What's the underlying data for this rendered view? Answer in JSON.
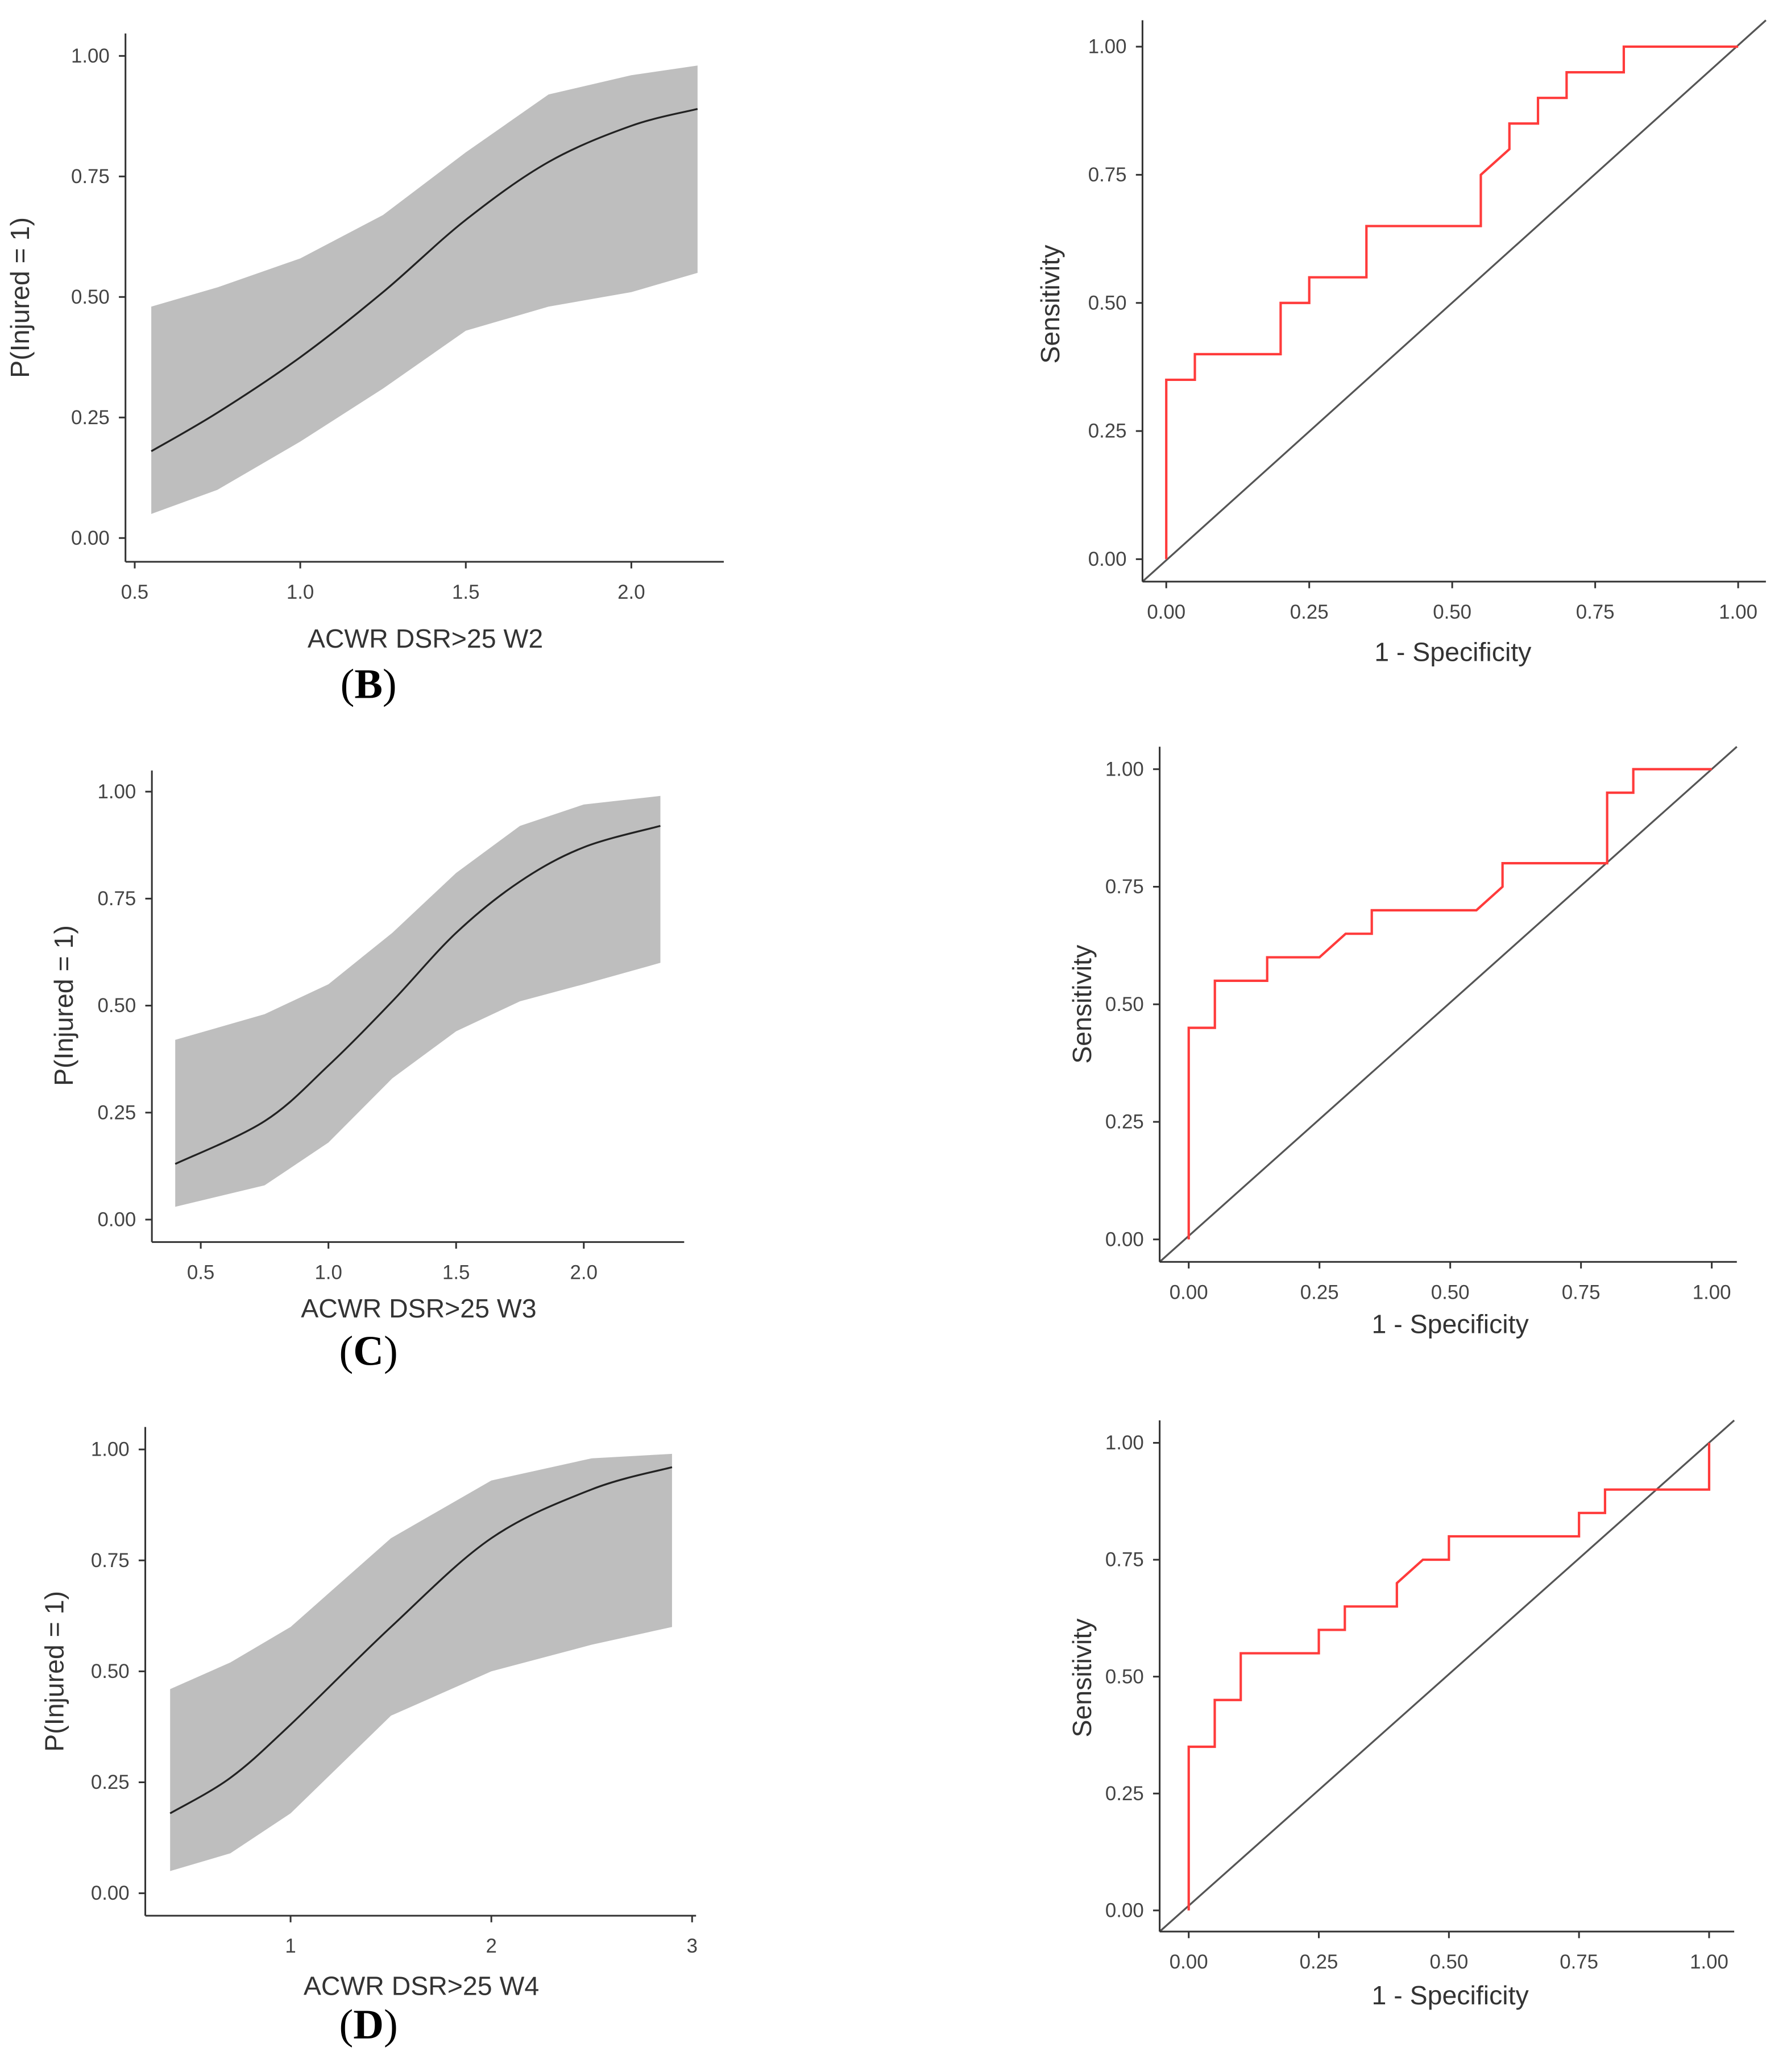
{
  "chart_data": [
    {
      "type": "line",
      "panel_label": "B",
      "xlabel": "ACWR DSR>25 W2",
      "ylabel": "P(Injured = 1)",
      "xlim": [
        0.45,
        2.3
      ],
      "ylim": [
        -0.05,
        1.05
      ],
      "xticks": [
        0.5,
        1.0,
        1.5,
        2.0
      ],
      "xtick_labels": [
        "0.5",
        "1.0",
        "1.5",
        "2.0"
      ],
      "yticks": [
        0,
        0.25,
        0.5,
        0.75,
        1
      ],
      "ytick_labels": [
        "0.00",
        "0.25",
        "0.50",
        "0.75",
        "1.00"
      ],
      "band_color": "#bebebe",
      "line_color": "#222222",
      "x": [
        0.55,
        0.75,
        1.0,
        1.25,
        1.5,
        1.75,
        2.0,
        2.2
      ],
      "mean": [
        0.18,
        0.26,
        0.375,
        0.51,
        0.66,
        0.78,
        0.855,
        0.89
      ],
      "lower": [
        0.05,
        0.1,
        0.2,
        0.31,
        0.43,
        0.48,
        0.51,
        0.55
      ],
      "upper": [
        0.48,
        0.52,
        0.58,
        0.67,
        0.8,
        0.92,
        0.96,
        0.98
      ]
    },
    {
      "type": "line",
      "xlabel": "1 - Specificity",
      "ylabel": "Sensitivity",
      "xlim": [
        -0.05,
        1.05
      ],
      "ylim": [
        -0.05,
        1.05
      ],
      "ticks": [
        0,
        0.25,
        0.5,
        0.75,
        1
      ],
      "tick_labels": [
        "0.00",
        "0.25",
        "0.50",
        "0.75",
        "1.00"
      ],
      "roc_color": "#ff3b3b",
      "diag_color": "#555555",
      "fpr": [
        0,
        0,
        0.05,
        0.05,
        0.2,
        0.2,
        0.25,
        0.25,
        0.35,
        0.35,
        0.55,
        0.55,
        0.6,
        0.6,
        0.65,
        0.65,
        0.7,
        0.7,
        0.8,
        0.8,
        1.0
      ],
      "tpr": [
        0,
        0.35,
        0.35,
        0.4,
        0.4,
        0.5,
        0.5,
        0.55,
        0.55,
        0.65,
        0.65,
        0.75,
        0.8,
        0.85,
        0.85,
        0.9,
        0.9,
        0.95,
        0.95,
        1.0,
        1.0
      ]
    },
    {
      "type": "line",
      "panel_label": "C",
      "xlabel": "ACWR DSR>25 W3",
      "ylabel": "P(Injured = 1)",
      "xlim": [
        0.3,
        2.4
      ],
      "ylim": [
        -0.05,
        1.05
      ],
      "xticks": [
        0.5,
        1.0,
        1.5,
        2.0
      ],
      "xtick_labels": [
        "0.5",
        "1.0",
        "1.5",
        "2.0"
      ],
      "yticks": [
        0,
        0.25,
        0.5,
        0.75,
        1
      ],
      "ytick_labels": [
        "0.00",
        "0.25",
        "0.50",
        "0.75",
        "1.00"
      ],
      "band_color": "#bebebe",
      "line_color": "#222222",
      "x": [
        0.4,
        0.75,
        1.0,
        1.25,
        1.5,
        1.75,
        2.0,
        2.3
      ],
      "mean": [
        0.13,
        0.23,
        0.36,
        0.51,
        0.67,
        0.79,
        0.87,
        0.92
      ],
      "lower": [
        0.03,
        0.08,
        0.18,
        0.33,
        0.44,
        0.51,
        0.55,
        0.6
      ],
      "upper": [
        0.42,
        0.48,
        0.55,
        0.67,
        0.81,
        0.92,
        0.97,
        0.99
      ]
    },
    {
      "type": "line",
      "xlabel": "1 - Specificity",
      "ylabel": "Sensitivity",
      "xlim": [
        -0.05,
        1.05
      ],
      "ylim": [
        -0.05,
        1.05
      ],
      "ticks": [
        0,
        0.25,
        0.5,
        0.75,
        1
      ],
      "tick_labels": [
        "0.00",
        "0.25",
        "0.50",
        "0.75",
        "1.00"
      ],
      "roc_color": "#ff3b3b",
      "diag_color": "#555555",
      "fpr": [
        0,
        0,
        0.05,
        0.05,
        0.15,
        0.15,
        0.25,
        0.3,
        0.35,
        0.35,
        0.55,
        0.6,
        0.6,
        0.8,
        0.8,
        0.85,
        0.85,
        1.0
      ],
      "tpr": [
        0,
        0.45,
        0.45,
        0.55,
        0.55,
        0.6,
        0.6,
        0.65,
        0.65,
        0.7,
        0.7,
        0.75,
        0.8,
        0.8,
        0.95,
        0.95,
        1.0,
        1.0
      ]
    },
    {
      "type": "line",
      "panel_label": "D",
      "xlabel": "ACWR DSR>25 W4",
      "ylabel": "P(Injured = 1)",
      "xlim": [
        0.3,
        3.0
      ],
      "ylim": [
        -0.05,
        1.05
      ],
      "xticks": [
        1,
        2,
        3
      ],
      "xtick_labels": [
        "1",
        "2",
        "3"
      ],
      "yticks": [
        0,
        0.25,
        0.5,
        0.75,
        1
      ],
      "ytick_labels": [
        "0.00",
        "0.25",
        "0.50",
        "0.75",
        "1.00"
      ],
      "band_color": "#bebebe",
      "line_color": "#222222",
      "x": [
        0.4,
        0.7,
        1.0,
        1.5,
        2.0,
        2.5,
        2.9
      ],
      "mean": [
        0.18,
        0.26,
        0.38,
        0.6,
        0.8,
        0.91,
        0.96
      ],
      "lower": [
        0.05,
        0.09,
        0.18,
        0.4,
        0.5,
        0.56,
        0.6
      ],
      "upper": [
        0.46,
        0.52,
        0.6,
        0.8,
        0.93,
        0.98,
        0.99
      ]
    },
    {
      "type": "line",
      "xlabel": "1 - Specificity",
      "ylabel": "Sensitivity",
      "xlim": [
        -0.05,
        1.05
      ],
      "ylim": [
        -0.05,
        1.05
      ],
      "ticks": [
        0,
        0.25,
        0.5,
        0.75,
        1
      ],
      "tick_labels": [
        "0.00",
        "0.25",
        "0.50",
        "0.75",
        "1.00"
      ],
      "roc_color": "#ff3b3b",
      "diag_color": "#555555",
      "fpr": [
        0,
        0,
        0.05,
        0.05,
        0.1,
        0.1,
        0.25,
        0.25,
        0.3,
        0.3,
        0.4,
        0.4,
        0.45,
        0.5,
        0.5,
        0.75,
        0.75,
        0.8,
        0.8,
        1.0,
        1.0
      ],
      "tpr": [
        0,
        0.35,
        0.35,
        0.45,
        0.45,
        0.55,
        0.55,
        0.6,
        0.6,
        0.65,
        0.65,
        0.7,
        0.75,
        0.75,
        0.8,
        0.8,
        0.85,
        0.85,
        0.9,
        0.9,
        1.0
      ]
    }
  ]
}
